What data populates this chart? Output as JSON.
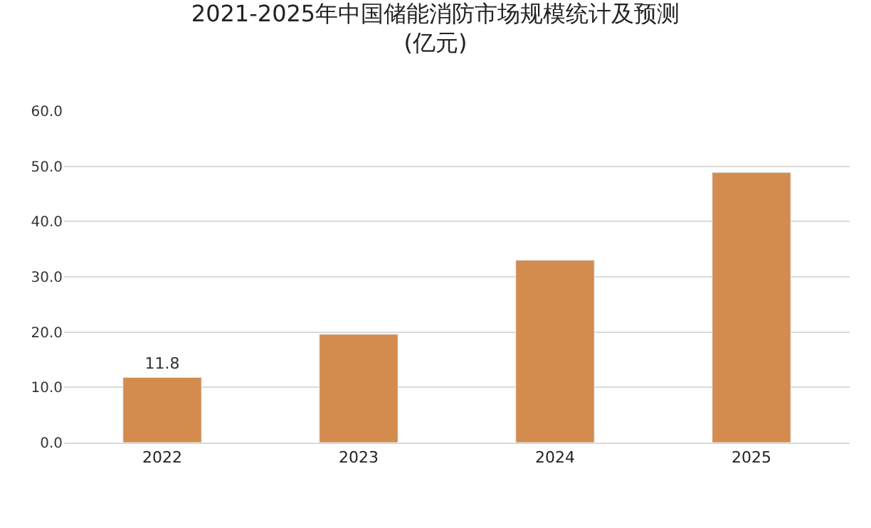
{
  "chart_data": {
    "type": "bar",
    "title": "2021-2025年中国储能消防市场规模统计及预测\n(亿元)",
    "categories": [
      "2022",
      "2023",
      "2024",
      "2025"
    ],
    "values": [
      11.8,
      19.6,
      33.0,
      48.9
    ],
    "value_labels": [
      "11.8",
      null,
      null,
      null
    ],
    "color": "#d38b4e",
    "ylim": [
      0,
      60
    ],
    "yticks": [
      {
        "value": 0,
        "label": "0.0"
      },
      {
        "value": 10,
        "label": "10.0"
      },
      {
        "value": 20,
        "label": "20.0"
      },
      {
        "value": 30,
        "label": "30.0"
      },
      {
        "value": 40,
        "label": "40.0"
      },
      {
        "value": 50,
        "label": "50.0"
      },
      {
        "value": 60,
        "label": "60.0"
      }
    ],
    "grid": "y",
    "legend": false
  }
}
